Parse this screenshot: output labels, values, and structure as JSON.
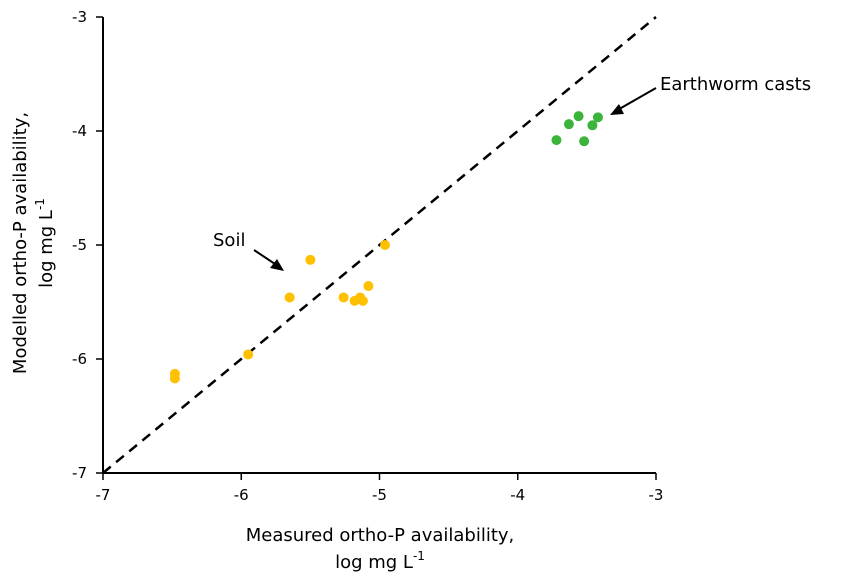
{
  "chart_data": {
    "type": "scatter",
    "xlabel_line1": "Measured ortho-P availability,",
    "xlabel_line2": "log mg L",
    "ylabel_line1": "Modelled ortho-P availability,",
    "ylabel_line2": "log mg L",
    "unit_superscript": "-1",
    "xlim": [
      -7,
      -3
    ],
    "ylim": [
      -7,
      -3
    ],
    "xticks": [
      -7,
      -6,
      -5,
      -4,
      -3
    ],
    "yticks": [
      -7,
      -6,
      -5,
      -4,
      -3
    ],
    "grid": false,
    "reference_line": {
      "style": "dashed",
      "x": [
        -7,
        -3
      ],
      "y": [
        -7,
        -3
      ]
    },
    "series": [
      {
        "name": "Soil",
        "color": "#FFC000",
        "points": [
          [
            -6.48,
            -6.13
          ],
          [
            -6.48,
            -6.17
          ],
          [
            -5.95,
            -5.96
          ],
          [
            -5.65,
            -5.46
          ],
          [
            -5.5,
            -5.13
          ],
          [
            -5.26,
            -5.46
          ],
          [
            -5.18,
            -5.49
          ],
          [
            -5.14,
            -5.46
          ],
          [
            -5.12,
            -5.49
          ],
          [
            -5.08,
            -5.36
          ],
          [
            -4.96,
            -5.0
          ]
        ]
      },
      {
        "name": "Earthworm casts",
        "color": "#3CB43C",
        "points": [
          [
            -3.72,
            -4.08
          ],
          [
            -3.63,
            -3.94
          ],
          [
            -3.56,
            -3.87
          ],
          [
            -3.52,
            -4.09
          ],
          [
            -3.46,
            -3.95
          ],
          [
            -3.42,
            -3.88
          ]
        ]
      }
    ],
    "annotations": [
      {
        "text": "Soil"
      },
      {
        "text": "Earthworm casts"
      }
    ]
  }
}
